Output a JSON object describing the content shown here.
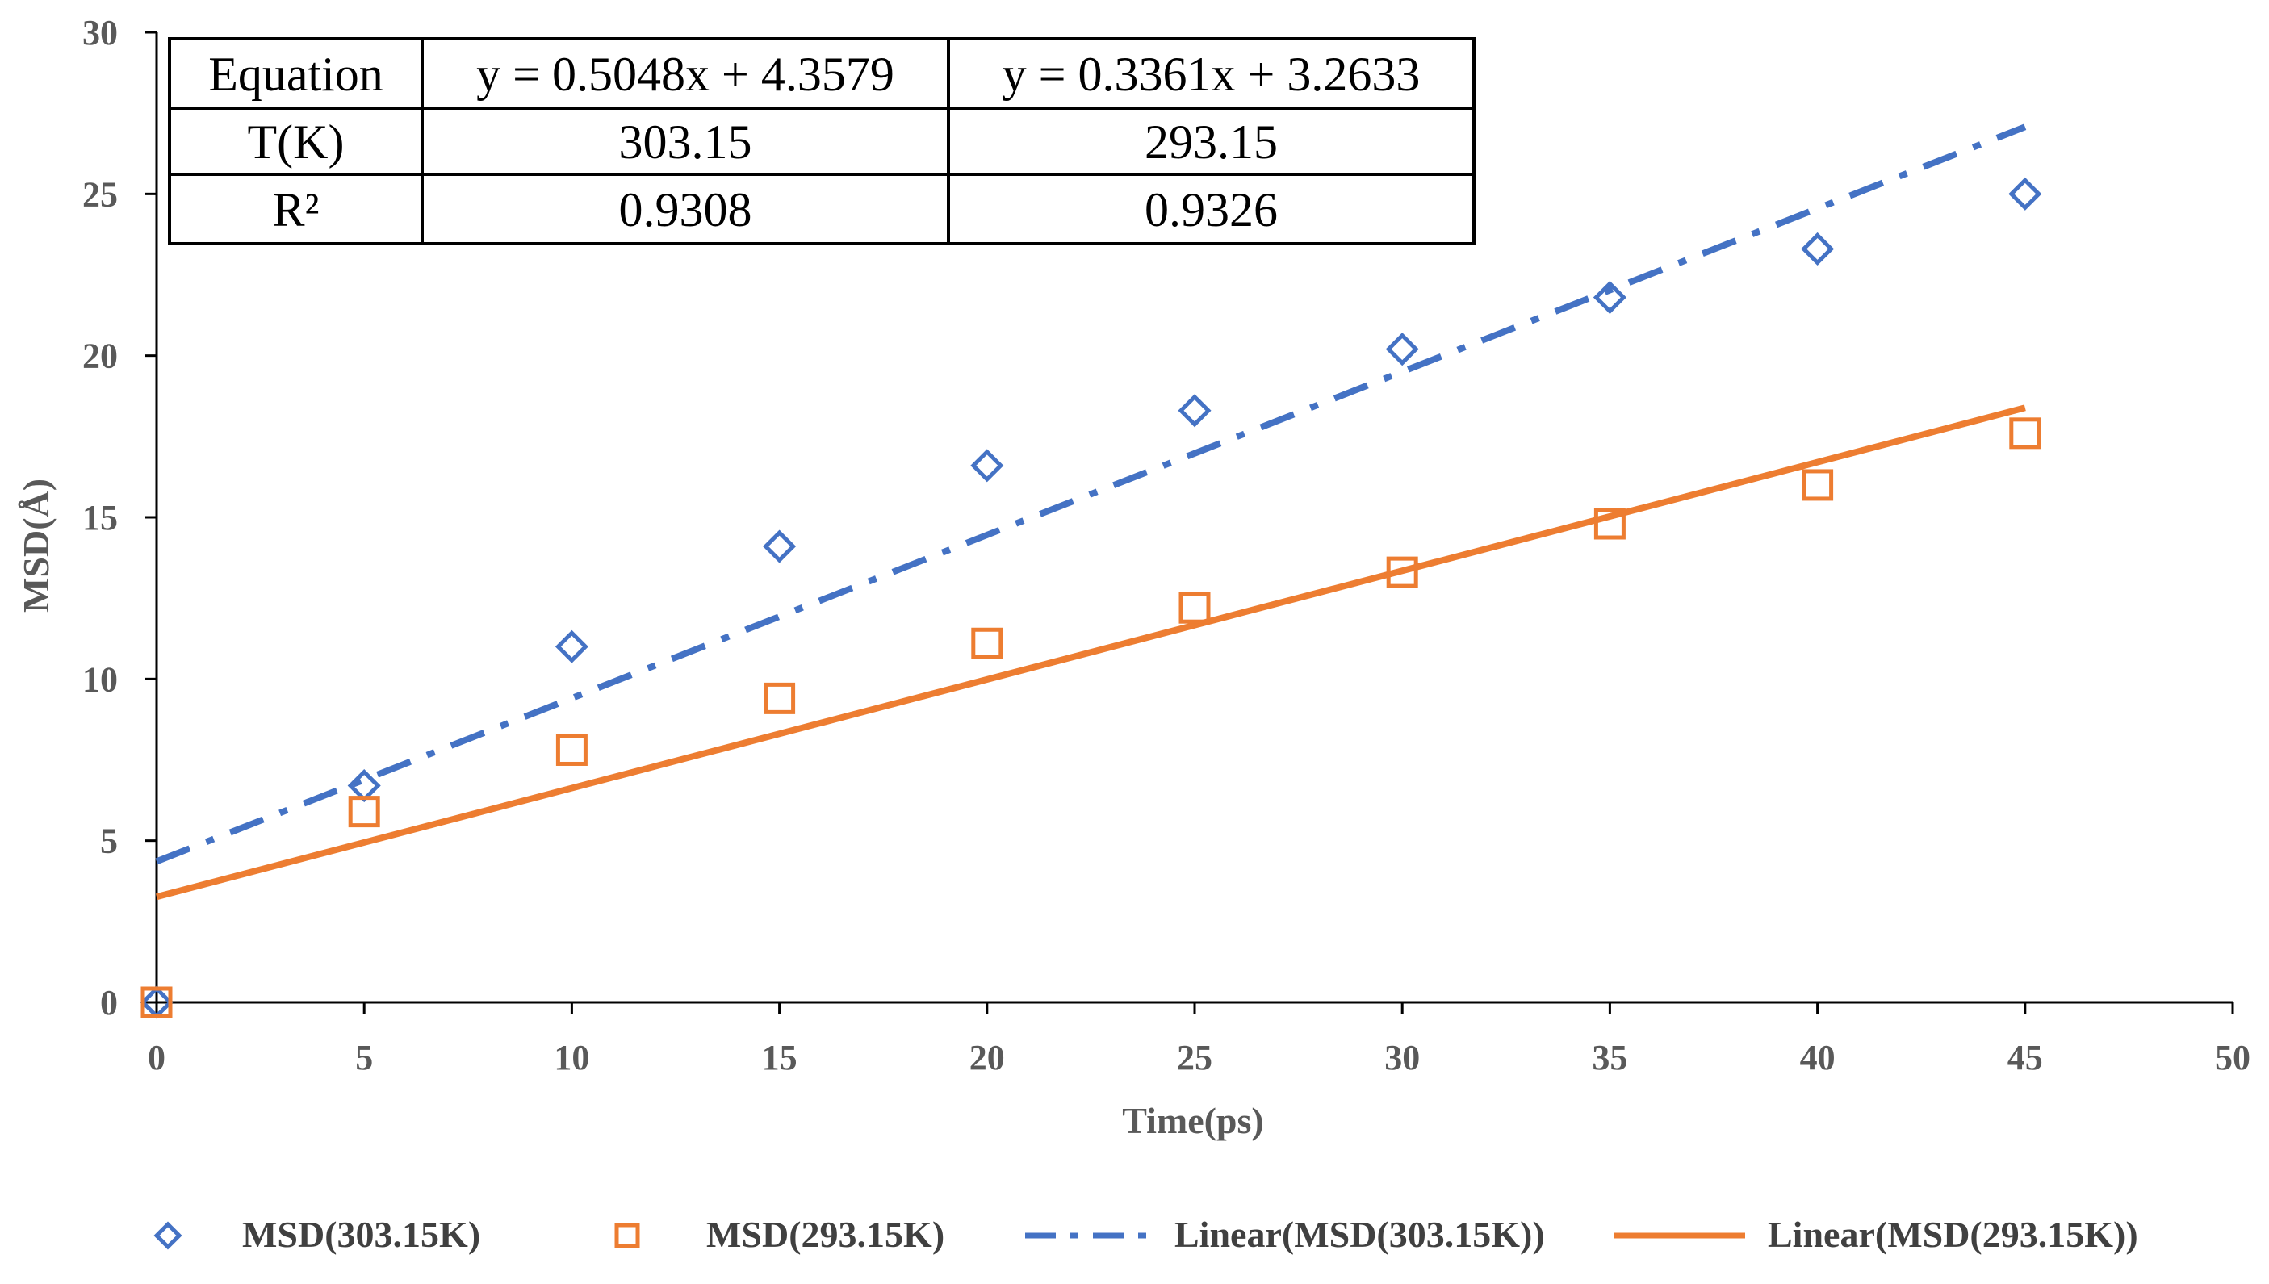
{
  "chart_data": {
    "type": "scatter",
    "title": "",
    "xlabel": "Time(ps)",
    "ylabel": "MSD(Å)",
    "xlim": [
      0,
      50
    ],
    "ylim": [
      0,
      30
    ],
    "x_ticks": [
      0,
      5,
      10,
      15,
      20,
      25,
      30,
      35,
      40,
      45,
      50
    ],
    "y_ticks": [
      0,
      5,
      10,
      15,
      20,
      25,
      30
    ],
    "grid": false,
    "legend_position": "bottom",
    "colors": {
      "blue": "#4472C4",
      "orange": "#ED7D31",
      "axis": "#000000"
    },
    "series": [
      {
        "name": "MSD(303.15K)",
        "marker": "diamond",
        "color": "#4472C4",
        "x": [
          0,
          5,
          10,
          15,
          20,
          25,
          30,
          35,
          40,
          45
        ],
        "y": [
          0,
          6.7,
          11.0,
          14.1,
          16.6,
          18.3,
          20.2,
          21.8,
          23.3,
          25.0
        ]
      },
      {
        "name": "MSD(293.15K)",
        "marker": "square",
        "color": "#ED7D31",
        "x": [
          0,
          5,
          10,
          15,
          20,
          25,
          30,
          35,
          40,
          45
        ],
        "y": [
          0,
          5.9,
          7.8,
          9.4,
          11.1,
          12.2,
          13.3,
          14.8,
          16.0,
          17.6
        ]
      }
    ],
    "trendlines": [
      {
        "name": "Linear(MSD(303.15K))",
        "slope": 0.5048,
        "intercept": 4.3579,
        "x_range": [
          0,
          45
        ],
        "style": "dashdot",
        "color": "#4472C4"
      },
      {
        "name": "Linear(MSD(293.15K))",
        "slope": 0.3361,
        "intercept": 3.2633,
        "x_range": [
          0,
          45
        ],
        "style": "solid",
        "color": "#ED7D31"
      }
    ],
    "inset_table": {
      "rows": [
        [
          "Equation",
          "y = 0.5048x + 4.3579",
          "y = 0.3361x + 3.2633"
        ],
        [
          "T(K)",
          "303.15",
          "293.15"
        ],
        [
          "R²",
          "0.9308",
          "0.9326"
        ]
      ]
    },
    "legend": [
      {
        "label": "MSD(303.15K)",
        "kind": "diamond",
        "color": "#4472C4"
      },
      {
        "label": "MSD(293.15K)",
        "kind": "square",
        "color": "#ED7D31"
      },
      {
        "label": "Linear(MSD(303.15K))",
        "kind": "dashdot",
        "color": "#4472C4"
      },
      {
        "label": "Linear(MSD(293.15K))",
        "kind": "solid",
        "color": "#ED7D31"
      }
    ]
  }
}
